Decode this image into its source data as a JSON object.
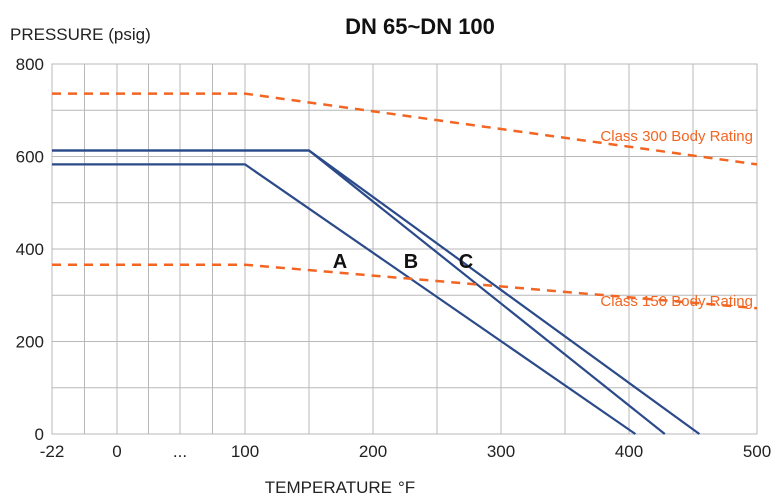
{
  "chart_data": {
    "type": "line",
    "title": "DN 65~DN 100",
    "ylabel": "PRESSURE (psig)",
    "xlabel": "TEMPERATURE",
    "xlabel_unit": "°F",
    "x_ticks": [
      "-22",
      "0",
      "...",
      "100",
      "200",
      "300",
      "400",
      "500"
    ],
    "y_ticks": [
      "0",
      "200",
      "400",
      "600",
      "800"
    ],
    "ylim": [
      0,
      800
    ],
    "grid": true,
    "colors": {
      "curve": "#2b4a8a",
      "rating": "#f26522",
      "grid": "#b8b8b8"
    },
    "series": [
      {
        "name": "A",
        "kind": "curve",
        "points": [
          [
            -22,
            583
          ],
          [
            100,
            583
          ],
          [
            405,
            0
          ]
        ]
      },
      {
        "name": "B",
        "kind": "curve",
        "points": [
          [
            -22,
            613
          ],
          [
            150,
            613
          ],
          [
            428,
            0
          ]
        ]
      },
      {
        "name": "C",
        "kind": "curve",
        "points": [
          [
            -22,
            613
          ],
          [
            150,
            613
          ],
          [
            455,
            0
          ]
        ]
      },
      {
        "name": "Class 300 Body Rating",
        "kind": "rating",
        "points": [
          [
            -22,
            736
          ],
          [
            100,
            736
          ],
          [
            500,
            583
          ]
        ]
      },
      {
        "name": "Class 150 Body Rating",
        "kind": "rating",
        "points": [
          [
            -22,
            366
          ],
          [
            100,
            366
          ],
          [
            500,
            272
          ]
        ]
      }
    ]
  }
}
